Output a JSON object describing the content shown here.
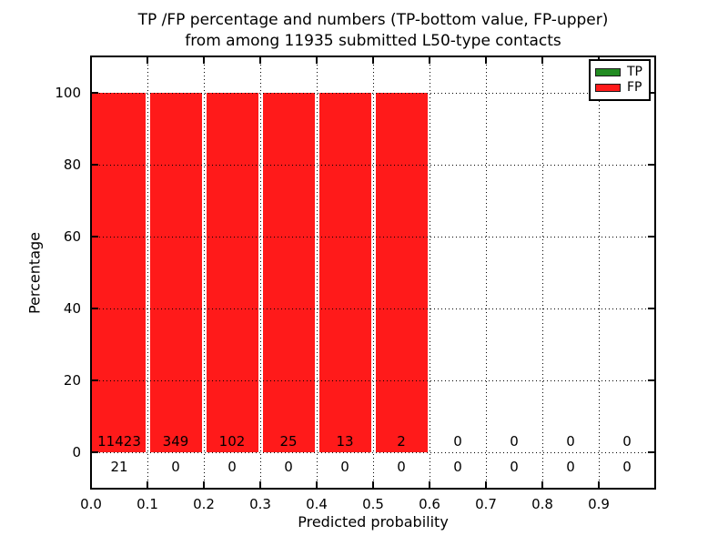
{
  "figure": {
    "title_line1": "TP /FP percentage and numbers (TP-bottom value, FP-upper)",
    "title_line2": "from among 11935 submitted L50-type contacts"
  },
  "chart_data": {
    "type": "bar",
    "title": "TP /FP percentage and numbers (TP-bottom value, FP-upper) from among 11935 submitted L50-type contacts",
    "xlabel": "Predicted probability",
    "ylabel": "Percentage",
    "xlim": [
      0.0,
      1.0
    ],
    "ylim": [
      -10,
      110
    ],
    "bin_width": 0.1,
    "bin_starts": [
      0.0,
      0.1,
      0.2,
      0.3,
      0.4,
      0.5,
      0.6,
      0.7,
      0.8,
      0.9
    ],
    "x_tick_labels": [
      "0.0",
      "0.1",
      "0.2",
      "0.3",
      "0.4",
      "0.5",
      "0.6",
      "0.7",
      "0.8",
      "0.9"
    ],
    "y_tick_labels_desc": [
      "100",
      "80",
      "60",
      "40",
      "20",
      "0"
    ],
    "y_tick_values": [
      0,
      20,
      40,
      60,
      80,
      100
    ],
    "grid": "dotted black, both axes, drawn above bars",
    "legend_position": "upper right",
    "series": [
      {
        "name": "TP",
        "color": "#228b22",
        "bar_percent": [
          0,
          0,
          0,
          0,
          0,
          0,
          0,
          0,
          0,
          0
        ],
        "counts": [
          21,
          0,
          0,
          0,
          0,
          0,
          0,
          0,
          0,
          0
        ]
      },
      {
        "name": "FP",
        "color": "#ff1a1a",
        "bar_percent": [
          100,
          100,
          100,
          100,
          100,
          100,
          0,
          0,
          0,
          0
        ],
        "counts": [
          11423,
          349,
          102,
          25,
          13,
          2,
          0,
          0,
          0,
          0
        ]
      }
    ],
    "annotations": "FP counts printed just above the 0% line inside bars; TP counts printed below the 0% line"
  }
}
